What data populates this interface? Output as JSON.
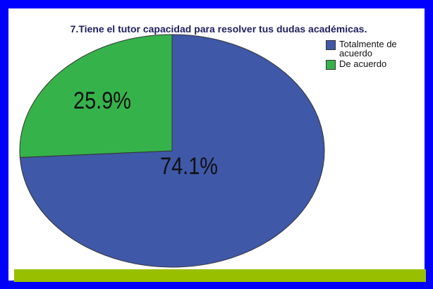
{
  "chart_data": {
    "type": "pie",
    "title": "7.Tiene el tutor capacidad para resolver tus dudas académicas.",
    "categories": [
      "Totalmente de acuerdo",
      "De acuerdo"
    ],
    "values": [
      74.1,
      25.9
    ],
    "value_labels": [
      "74.1%",
      "25.9%"
    ],
    "colors": [
      "#3f58a8",
      "#35b34a"
    ],
    "legend": "right"
  }
}
